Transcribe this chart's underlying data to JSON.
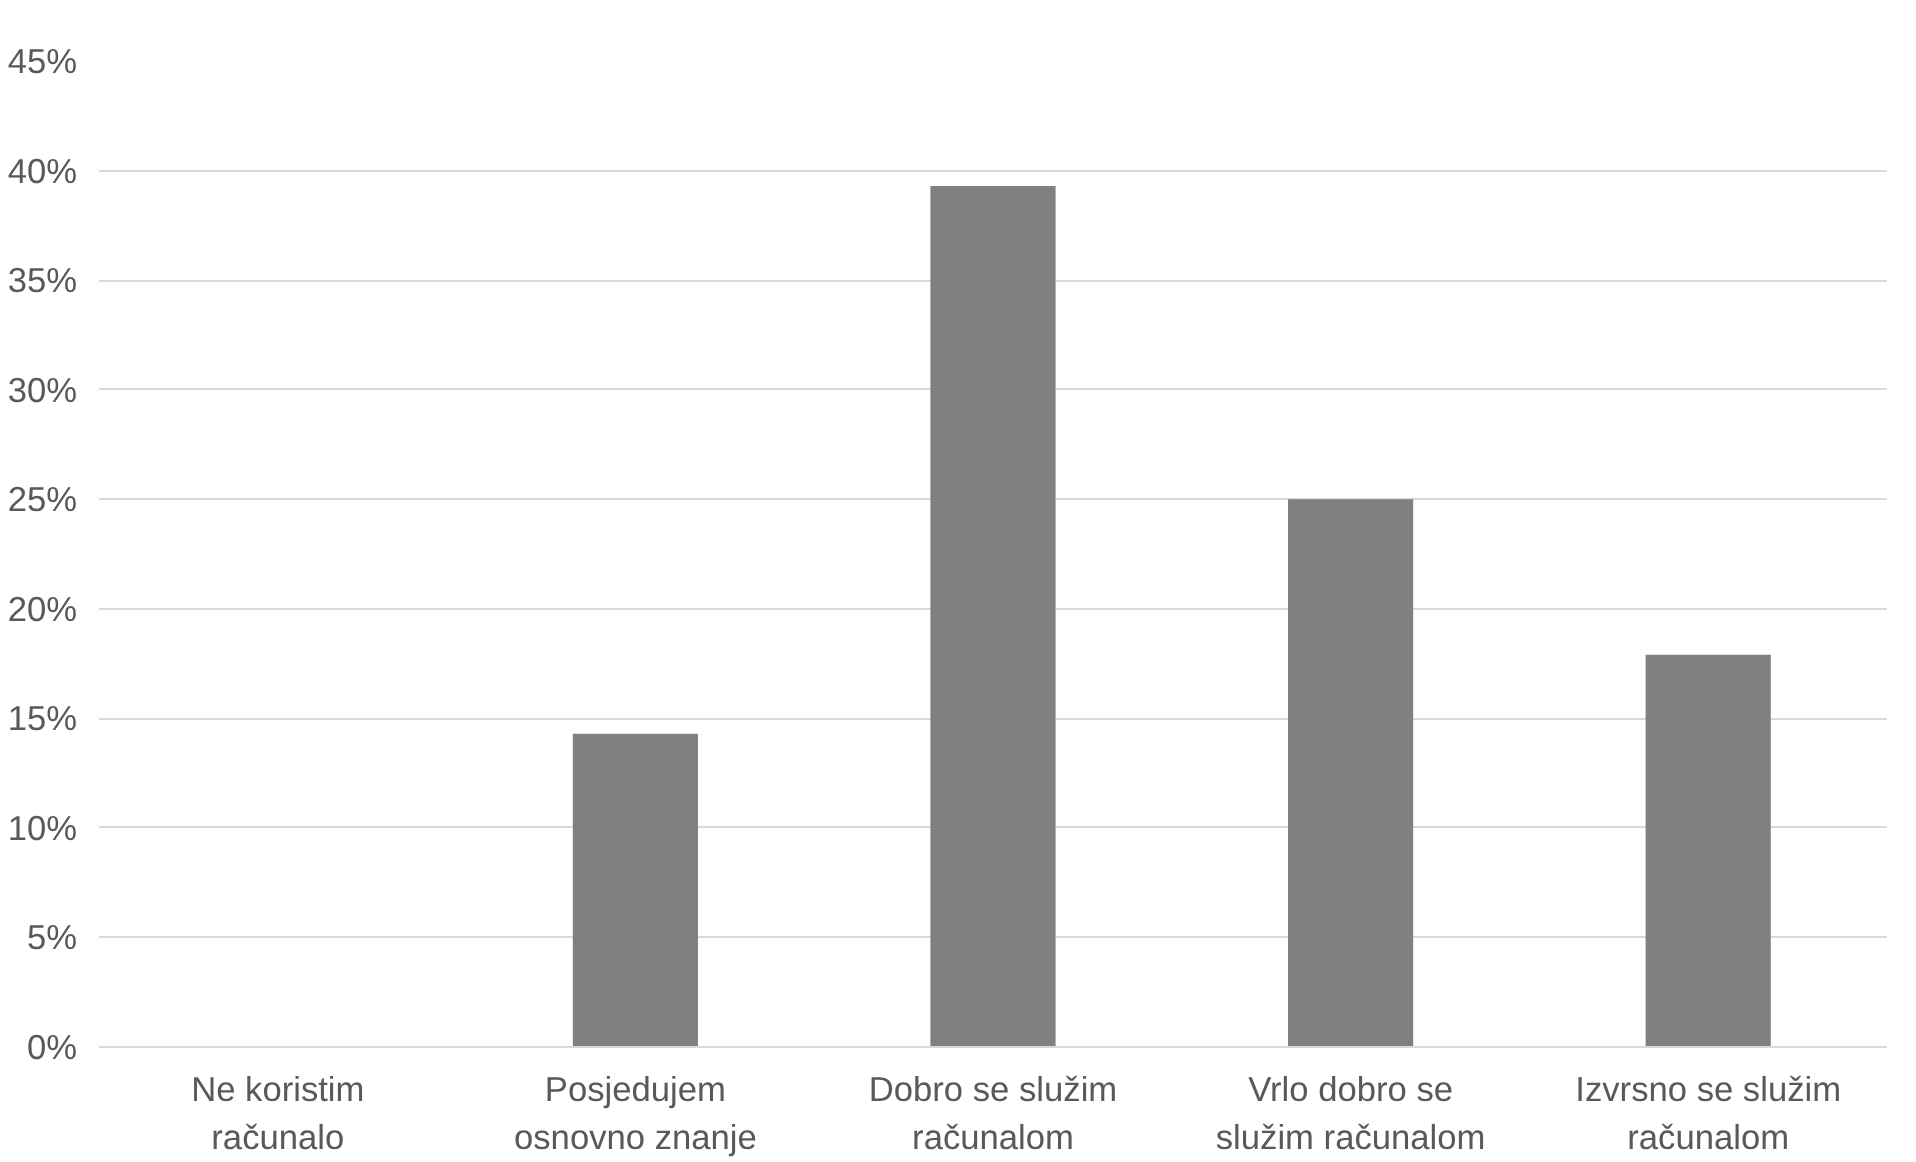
{
  "chart_data": {
    "type": "bar",
    "categories": [
      "Ne koristim računalo",
      "Posjedujem osnovno znanje",
      "Dobro se služim računalom",
      "Vrlo dobro se služim računalom",
      "Izvrsno se služim računalom"
    ],
    "values": [
      0,
      14.3,
      39.3,
      25,
      17.9
    ],
    "color": "#808080",
    "ylim": [
      0,
      45
    ],
    "yticks": [
      {
        "value": 0,
        "label": "0%"
      },
      {
        "value": 5,
        "label": "5%"
      },
      {
        "value": 10,
        "label": "10%"
      },
      {
        "value": 15,
        "label": "15%"
      },
      {
        "value": 20,
        "label": "20%"
      },
      {
        "value": 25,
        "label": "25%"
      },
      {
        "value": 30,
        "label": "30%"
      },
      {
        "value": 35,
        "label": "35%"
      },
      {
        "value": 40,
        "label": "40%"
      },
      {
        "value": 45,
        "label": "45%"
      }
    ],
    "grid": "y"
  }
}
